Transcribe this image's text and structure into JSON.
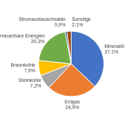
{
  "chart_data": {
    "type": "pie",
    "categories": [
      "Mineralöl",
      "Erdgas",
      "Steinkohle",
      "Braunkohle",
      "Erneuerbare Energien",
      "Stromaustauschsaldo",
      "Sonstige"
    ],
    "values": [
      37.1,
      24.9,
      7.2,
      7.5,
      20.3,
      0.9,
      2.1
    ],
    "value_labels": [
      "37,1%",
      "24,9%",
      "7,2%",
      "7,5%",
      "20,3%",
      "0,9%",
      "2,1%"
    ],
    "colors": [
      "#4472c4",
      "#ed7d31",
      "#a5a5a5",
      "#ffc000",
      "#70ad47",
      "#264478",
      "#9e480e"
    ],
    "data_labels": true
  }
}
